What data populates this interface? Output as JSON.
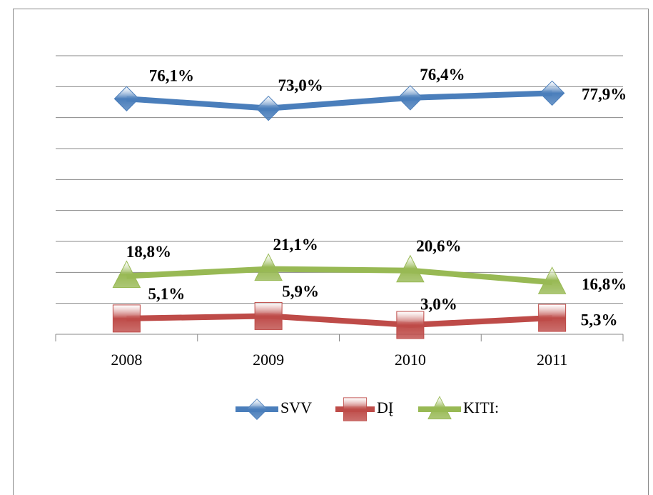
{
  "chart_data": {
    "type": "line",
    "categories": [
      "2008",
      "2009",
      "2010",
      "2011"
    ],
    "series": [
      {
        "name": "SVV",
        "color": "#4a7ebb",
        "marker": "diamond",
        "values": [
          76.1,
          73.0,
          76.4,
          77.9
        ],
        "value_labels": [
          "76,1%",
          "73,0%",
          "76,4%",
          "77,9%"
        ]
      },
      {
        "name": "DĮ",
        "color": "#be4b48",
        "marker": "square",
        "values": [
          5.1,
          5.9,
          3.0,
          5.3
        ],
        "value_labels": [
          "5,1%",
          "5,9%",
          "3,0%",
          "5,3%"
        ]
      },
      {
        "name": "KITI:",
        "color": "#98b954",
        "marker": "triangle",
        "values": [
          18.8,
          21.1,
          20.6,
          16.8
        ],
        "value_labels": [
          "18,8%",
          "21,1%",
          "20,6%",
          "16,8%"
        ]
      }
    ],
    "ylim": [
      0,
      90
    ],
    "yticks": [
      0,
      10,
      20,
      30,
      40,
      50,
      60,
      70,
      80,
      90
    ],
    "grid": true,
    "legend": "bottom"
  }
}
